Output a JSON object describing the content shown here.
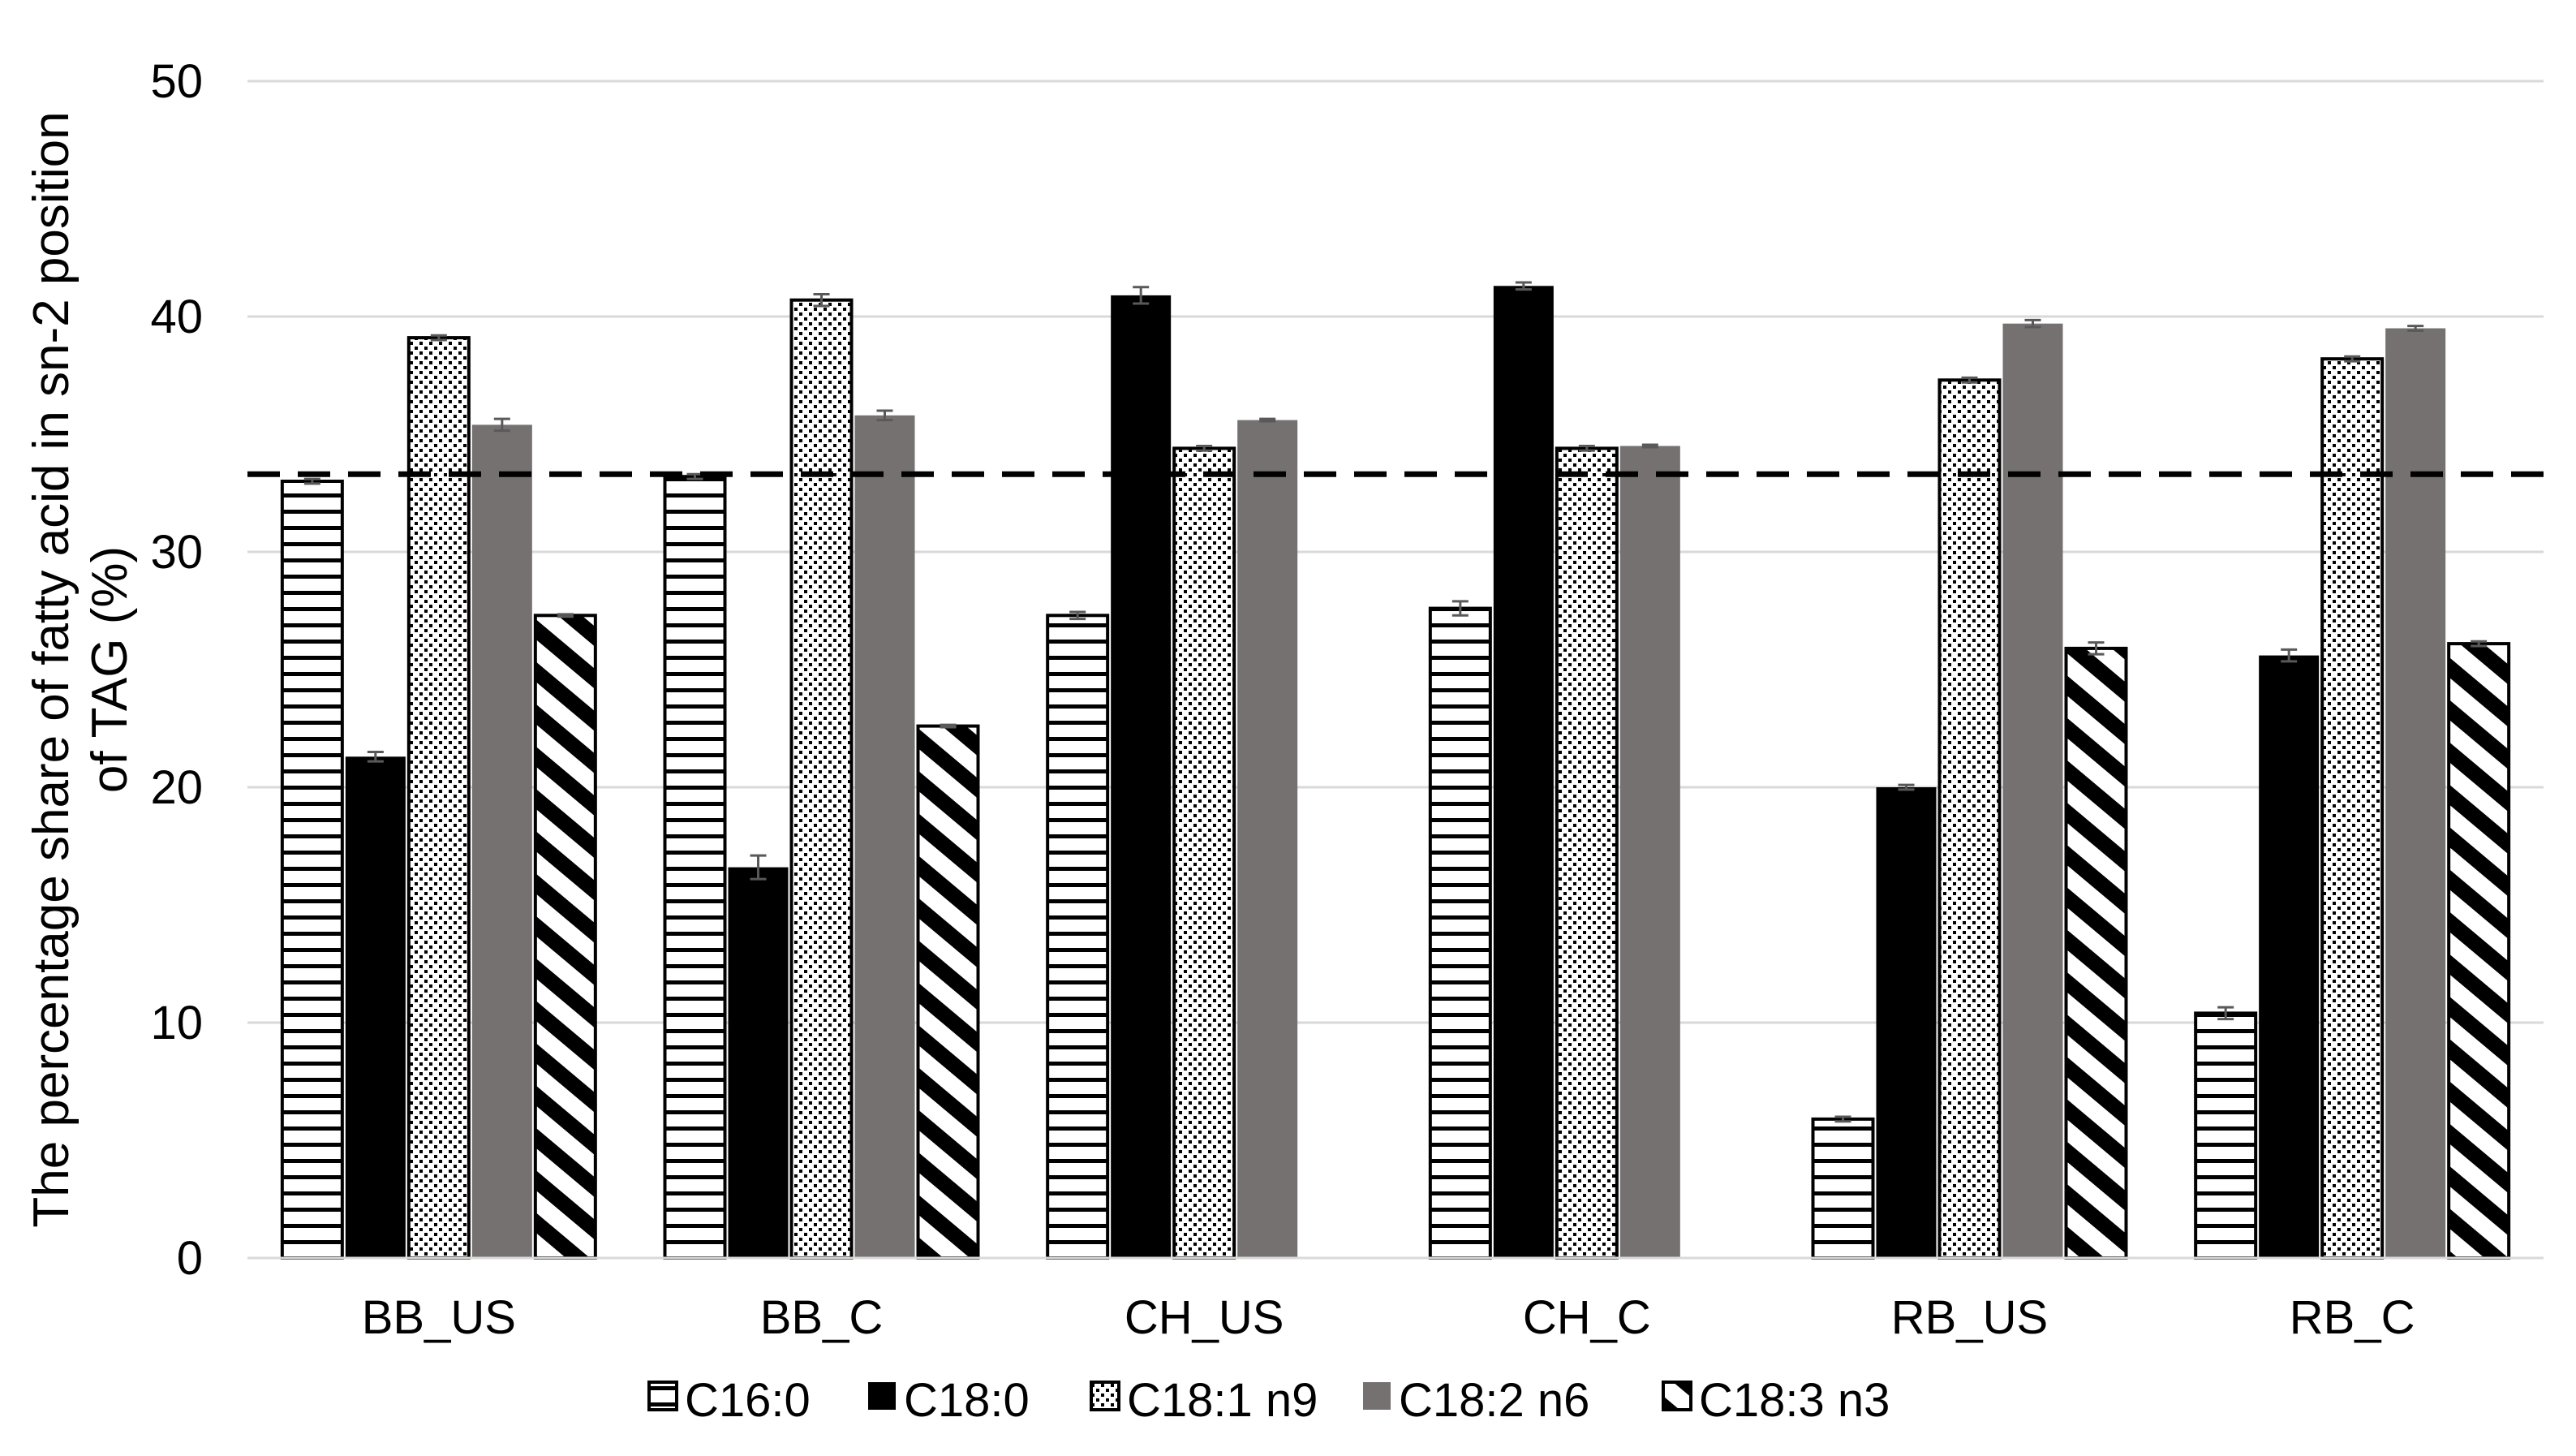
{
  "chart_data": {
    "type": "bar",
    "title": "",
    "xlabel": "",
    "ylabel_lines": [
      "The percentage share of fatty acid in sn-2 position",
      "of TAG (%)"
    ],
    "ylim": [
      0,
      50
    ],
    "yticks": [
      "0",
      "10",
      "20",
      "30",
      "40",
      "50"
    ],
    "categories": [
      "BB_US",
      "BB_C",
      "CH_US",
      "CH_C",
      "RB_US",
      "RB_C"
    ],
    "series": [
      {
        "name": "C16:0",
        "pattern": "hlines",
        "values": [
          33.0,
          33.2,
          27.3,
          27.6,
          5.9,
          10.4
        ],
        "errors": [
          0.1,
          0.1,
          0.15,
          0.3,
          0.1,
          0.25
        ]
      },
      {
        "name": "C18:0",
        "pattern": "black",
        "values": [
          21.3,
          16.6,
          40.9,
          41.3,
          20.0,
          25.6
        ],
        "errors": [
          0.2,
          0.5,
          0.35,
          0.15,
          0.1,
          0.25
        ]
      },
      {
        "name": "C18:1 n9",
        "pattern": "dots",
        "values": [
          39.1,
          40.7,
          34.4,
          34.4,
          37.3,
          38.2
        ],
        "errors": [
          0.1,
          0.25,
          0.1,
          0.1,
          0.1,
          0.1
        ]
      },
      {
        "name": "C18:2 n6",
        "pattern": "gray",
        "values": [
          35.4,
          35.8,
          35.6,
          34.5,
          39.7,
          39.5
        ],
        "errors": [
          0.25,
          0.2,
          0.05,
          0.05,
          0.15,
          0.1
        ]
      },
      {
        "name": "C18:3 n3",
        "pattern": "diag",
        "values": [
          27.3,
          22.6,
          null,
          null,
          25.9,
          26.1
        ],
        "errors": [
          0.05,
          0.05,
          null,
          null,
          0.25,
          0.1
        ]
      }
    ],
    "reference_line": {
      "value": 33.3,
      "style": "dashed"
    },
    "grid": true,
    "legend": "bottom",
    "colors": {
      "black": "#000000",
      "gray": "#767171",
      "grid": "#d9d9d9",
      "error_bar": "#595959"
    }
  }
}
